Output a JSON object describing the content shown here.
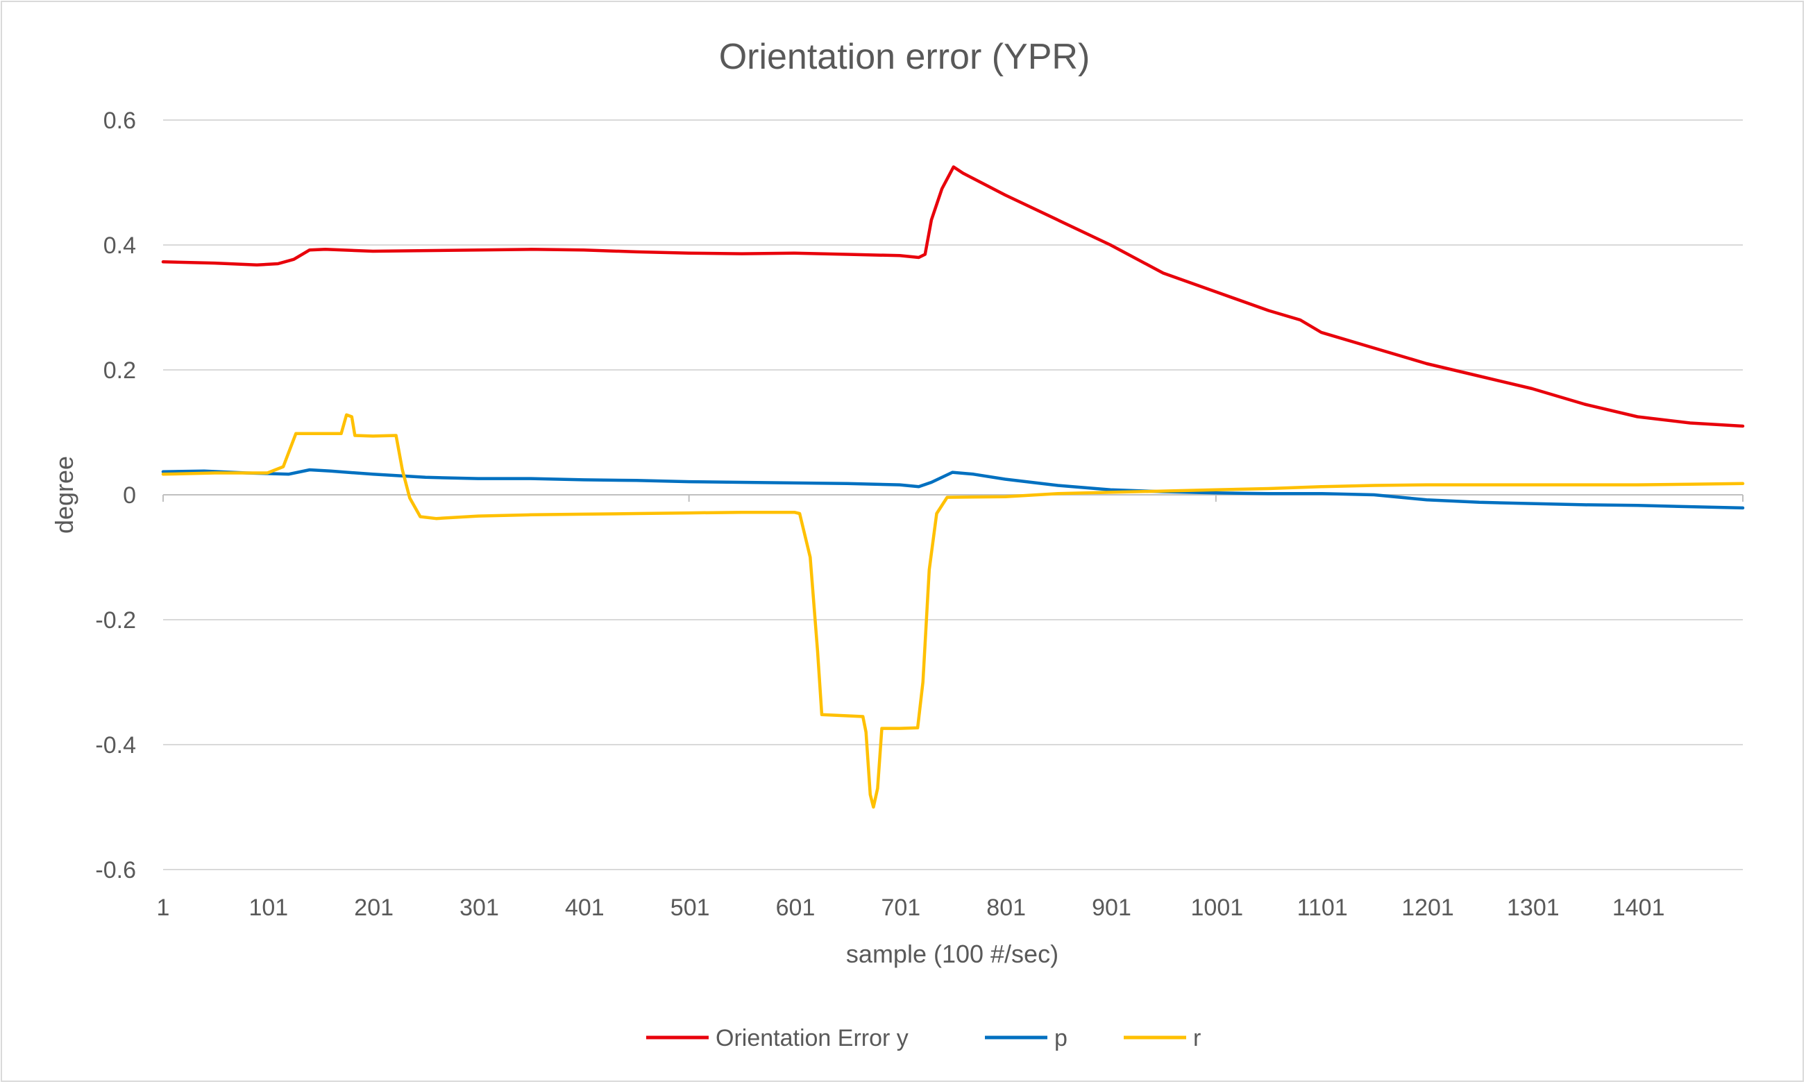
{
  "chart_data": {
    "type": "line",
    "title": "Orientation error (YPR)",
    "xlabel": "sample (100 #/sec)",
    "ylabel": "degree",
    "xlim": [
      1,
      1500
    ],
    "ylim": [
      -0.6,
      0.6
    ],
    "x_ticks": [
      "1",
      "101",
      "201",
      "301",
      "401",
      "501",
      "601",
      "701",
      "801",
      "901",
      "1001",
      "1101",
      "1201",
      "1301",
      "1401"
    ],
    "y_ticks": [
      "0.6",
      "0.4",
      "0.2",
      "0",
      "-0.2",
      "-0.4",
      "-0.6"
    ],
    "grid": true,
    "legend_position": "bottom",
    "series": [
      {
        "name": "Orientation Error y",
        "color": "#e8000b",
        "points": [
          [
            1,
            0.373
          ],
          [
            50,
            0.371
          ],
          [
            90,
            0.368
          ],
          [
            110,
            0.37
          ],
          [
            125,
            0.377
          ],
          [
            140,
            0.392
          ],
          [
            155,
            0.393
          ],
          [
            200,
            0.39
          ],
          [
            250,
            0.391
          ],
          [
            300,
            0.392
          ],
          [
            350,
            0.393
          ],
          [
            400,
            0.392
          ],
          [
            450,
            0.389
          ],
          [
            500,
            0.387
          ],
          [
            550,
            0.386
          ],
          [
            600,
            0.387
          ],
          [
            650,
            0.385
          ],
          [
            700,
            0.383
          ],
          [
            718,
            0.38
          ],
          [
            724,
            0.385
          ],
          [
            730,
            0.44
          ],
          [
            740,
            0.49
          ],
          [
            751,
            0.525
          ],
          [
            760,
            0.515
          ],
          [
            800,
            0.48
          ],
          [
            850,
            0.44
          ],
          [
            900,
            0.4
          ],
          [
            950,
            0.355
          ],
          [
            1000,
            0.325
          ],
          [
            1050,
            0.295
          ],
          [
            1080,
            0.28
          ],
          [
            1100,
            0.26
          ],
          [
            1150,
            0.235
          ],
          [
            1200,
            0.21
          ],
          [
            1250,
            0.19
          ],
          [
            1300,
            0.17
          ],
          [
            1350,
            0.145
          ],
          [
            1400,
            0.125
          ],
          [
            1450,
            0.115
          ],
          [
            1500,
            0.11
          ]
        ]
      },
      {
        "name": "p",
        "color": "#0070c0",
        "points": [
          [
            1,
            0.037
          ],
          [
            40,
            0.038
          ],
          [
            80,
            0.035
          ],
          [
            120,
            0.033
          ],
          [
            140,
            0.04
          ],
          [
            160,
            0.038
          ],
          [
            200,
            0.033
          ],
          [
            250,
            0.028
          ],
          [
            300,
            0.026
          ],
          [
            350,
            0.026
          ],
          [
            400,
            0.024
          ],
          [
            450,
            0.023
          ],
          [
            500,
            0.021
          ],
          [
            550,
            0.02
          ],
          [
            600,
            0.019
          ],
          [
            650,
            0.018
          ],
          [
            700,
            0.016
          ],
          [
            718,
            0.013
          ],
          [
            730,
            0.02
          ],
          [
            750,
            0.036
          ],
          [
            770,
            0.033
          ],
          [
            800,
            0.025
          ],
          [
            850,
            0.015
          ],
          [
            900,
            0.008
          ],
          [
            950,
            0.005
          ],
          [
            1000,
            0.003
          ],
          [
            1050,
            0.002
          ],
          [
            1100,
            0.002
          ],
          [
            1150,
            0.0
          ],
          [
            1200,
            -0.008
          ],
          [
            1250,
            -0.012
          ],
          [
            1300,
            -0.014
          ],
          [
            1350,
            -0.016
          ],
          [
            1400,
            -0.017
          ],
          [
            1450,
            -0.019
          ],
          [
            1500,
            -0.021
          ]
        ]
      },
      {
        "name": "r",
        "color": "#ffc000",
        "points": [
          [
            1,
            0.033
          ],
          [
            50,
            0.035
          ],
          [
            100,
            0.035
          ],
          [
            115,
            0.045
          ],
          [
            127,
            0.098
          ],
          [
            170,
            0.098
          ],
          [
            175,
            0.128
          ],
          [
            180,
            0.125
          ],
          [
            183,
            0.095
          ],
          [
            200,
            0.094
          ],
          [
            222,
            0.095
          ],
          [
            228,
            0.04
          ],
          [
            235,
            -0.005
          ],
          [
            245,
            -0.035
          ],
          [
            260,
            -0.038
          ],
          [
            300,
            -0.034
          ],
          [
            350,
            -0.032
          ],
          [
            400,
            -0.031
          ],
          [
            450,
            -0.03
          ],
          [
            500,
            -0.029
          ],
          [
            550,
            -0.028
          ],
          [
            600,
            -0.028
          ],
          [
            605,
            -0.03
          ],
          [
            615,
            -0.1
          ],
          [
            622,
            -0.25
          ],
          [
            626,
            -0.352
          ],
          [
            665,
            -0.355
          ],
          [
            668,
            -0.38
          ],
          [
            672,
            -0.48
          ],
          [
            675,
            -0.5
          ],
          [
            679,
            -0.47
          ],
          [
            683,
            -0.374
          ],
          [
            700,
            -0.374
          ],
          [
            717,
            -0.373
          ],
          [
            722,
            -0.3
          ],
          [
            728,
            -0.12
          ],
          [
            735,
            -0.03
          ],
          [
            745,
            -0.004
          ],
          [
            800,
            -0.003
          ],
          [
            850,
            0.002
          ],
          [
            900,
            0.004
          ],
          [
            950,
            0.006
          ],
          [
            1000,
            0.008
          ],
          [
            1050,
            0.01
          ],
          [
            1100,
            0.013
          ],
          [
            1150,
            0.015
          ],
          [
            1200,
            0.016
          ],
          [
            1250,
            0.016
          ],
          [
            1300,
            0.016
          ],
          [
            1350,
            0.016
          ],
          [
            1400,
            0.016
          ],
          [
            1450,
            0.017
          ],
          [
            1500,
            0.018
          ]
        ]
      }
    ]
  }
}
